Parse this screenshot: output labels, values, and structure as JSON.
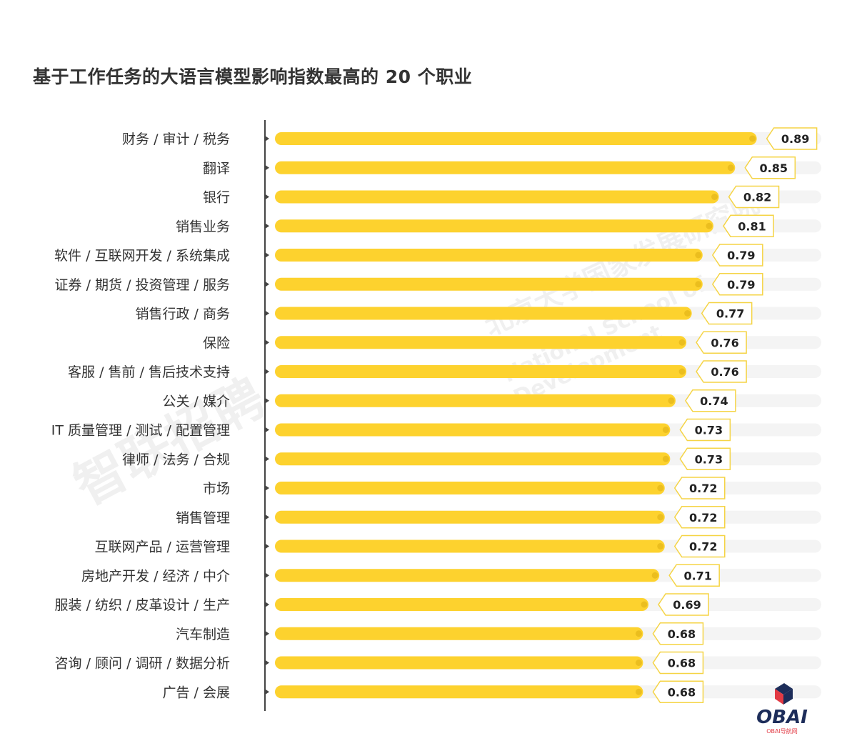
{
  "chart_data": {
    "type": "bar",
    "orientation": "horizontal",
    "title": "基于工作任务的大语言模型影响指数最高的 20 个职业",
    "categories": [
      "财务 / 审计 / 税务",
      "翻译",
      "银行",
      "销售业务",
      "软件 / 互联网开发 / 系统集成",
      "证券 / 期货 / 投资管理 / 服务",
      "销售行政 / 商务",
      "保险",
      "客服 / 售前 / 售后技术支持",
      "公关 / 媒介",
      "IT 质量管理 / 测试 / 配置管理",
      "律师 / 法务 / 合规",
      "市场",
      "销售管理",
      "互联网产品 / 运营管理",
      "房地产开发 / 经济 / 中介",
      "服装 / 纺织 / 皮革设计 / 生产",
      "汽车制造",
      "咨询 / 顾问 / 调研 / 数据分析",
      "广告 / 会展"
    ],
    "values": [
      0.89,
      0.85,
      0.82,
      0.81,
      0.79,
      0.79,
      0.77,
      0.76,
      0.76,
      0.74,
      0.73,
      0.73,
      0.72,
      0.72,
      0.72,
      0.71,
      0.69,
      0.68,
      0.68,
      0.68
    ],
    "xlim": [
      0,
      1
    ],
    "grid": false,
    "colors": {
      "bar": "#FDD22E",
      "track": "#F4F4F4",
      "label_border": "#F5D445"
    }
  },
  "watermarks": [
    "智联招聘",
    "北京大学国家发展研究院",
    "National School of Development"
  ],
  "logo": {
    "text": "OBAI",
    "subtext": "OBAI导航网"
  }
}
